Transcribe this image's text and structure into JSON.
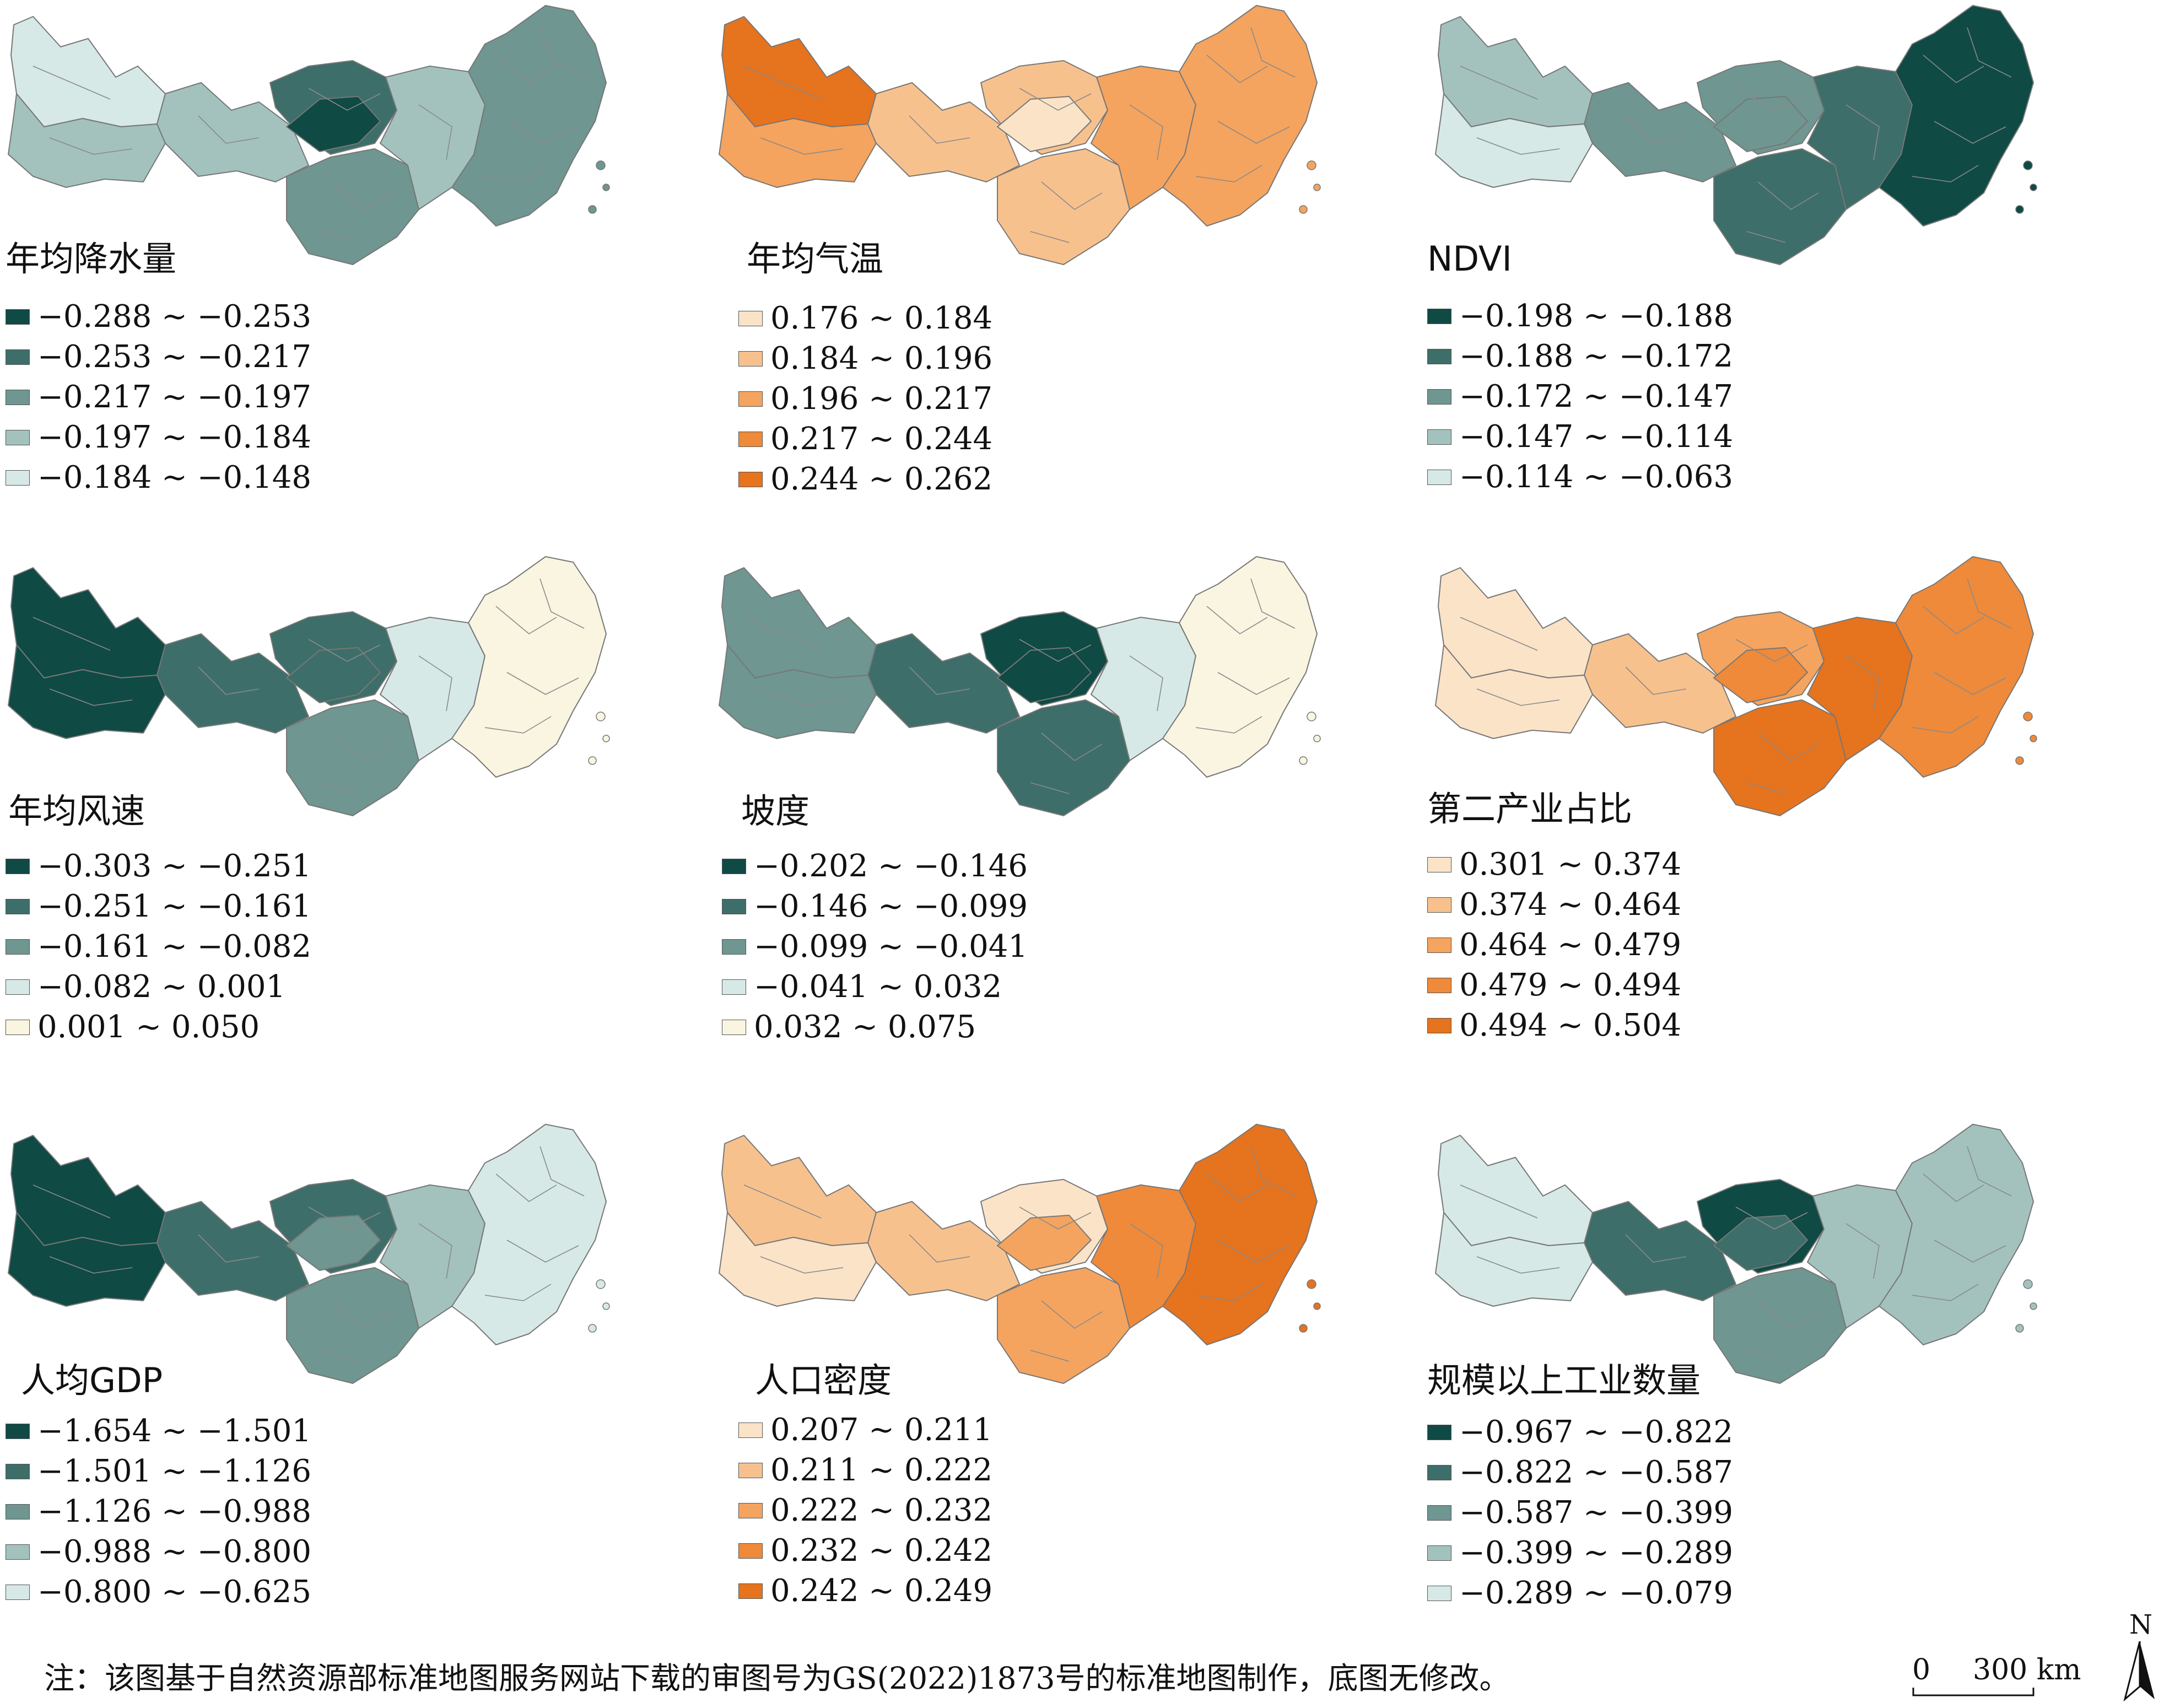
{
  "colors": {
    "teal": [
      "#0f4a44",
      "#3e6e69",
      "#6f9691",
      "#a3c2bd",
      "#d6e9e6"
    ],
    "orange": [
      "#fbe3c8",
      "#f7c18e",
      "#f4a45f",
      "#ee8a3a",
      "#e6731d"
    ],
    "cream": "#f9f5e1",
    "outline": "#777777"
  },
  "panels": [
    {
      "title": "年均降水量",
      "palette": "teal",
      "legend": [
        "−0.288 ~ −0.253",
        "−0.253 ~ −0.217",
        "−0.217 ~ −0.197",
        "−0.197 ~ −0.184",
        "−0.184 ~ −0.148"
      ],
      "legend_colors": [
        "#0f4a44",
        "#3e6e69",
        "#6f9691",
        "#a3c2bd",
        "#d6e9e6"
      ],
      "regions": [
        "#d6e9e6",
        "#a3c2bd",
        "#a3c2bd",
        "#3e6e69",
        "#0f4a44",
        "#6f9691",
        "#a3c2bd",
        "#6f9691"
      ]
    },
    {
      "title": "年均气温",
      "palette": "orange",
      "legend": [
        "0.176 ~ 0.184",
        "0.184 ~ 0.196",
        "0.196 ~ 0.217",
        "0.217 ~ 0.244",
        "0.244 ~ 0.262"
      ],
      "legend_colors": [
        "#fbe3c8",
        "#f7c18e",
        "#f4a45f",
        "#ee8a3a",
        "#e6731d"
      ],
      "regions": [
        "#e6731d",
        "#f4a45f",
        "#f7c18e",
        "#f7c18e",
        "#fbe3c8",
        "#f7c18e",
        "#f4a45f",
        "#f4a45f"
      ]
    },
    {
      "title": "NDVI",
      "palette": "teal",
      "legend": [
        "−0.198 ~ −0.188",
        "−0.188 ~ −0.172",
        "−0.172 ~ −0.147",
        "−0.147 ~ −0.114",
        "−0.114 ~ −0.063"
      ],
      "legend_colors": [
        "#0f4a44",
        "#3e6e69",
        "#6f9691",
        "#a3c2bd",
        "#d6e9e6"
      ],
      "regions": [
        "#a3c2bd",
        "#d6e9e6",
        "#6f9691",
        "#6f9691",
        "#6f9691",
        "#3e6e69",
        "#3e6e69",
        "#0f4a44"
      ]
    },
    {
      "title": "年均风速",
      "palette": "teal",
      "legend": [
        "−0.303 ~ −0.251",
        "−0.251 ~ −0.161",
        "−0.161 ~ −0.082",
        "−0.082 ~ 0.001",
        "0.001 ~ 0.050"
      ],
      "legend_colors": [
        "#0f4a44",
        "#3e6e69",
        "#6f9691",
        "#d6e9e6",
        "#f9f5e1"
      ],
      "regions": [
        "#0f4a44",
        "#0f4a44",
        "#3e6e69",
        "#3e6e69",
        "#3e6e69",
        "#6f9691",
        "#d6e9e6",
        "#f9f5e1"
      ]
    },
    {
      "title": "坡度",
      "palette": "teal",
      "legend": [
        "−0.202 ~ −0.146",
        "−0.146 ~ −0.099",
        "−0.099 ~ −0.041",
        "−0.041 ~ 0.032",
        "0.032 ~ 0.075"
      ],
      "legend_colors": [
        "#0f4a44",
        "#3e6e69",
        "#6f9691",
        "#d6e9e6",
        "#f9f5e1"
      ],
      "regions": [
        "#6f9691",
        "#6f9691",
        "#3e6e69",
        "#0f4a44",
        "#0f4a44",
        "#3e6e69",
        "#d6e9e6",
        "#f9f5e1"
      ]
    },
    {
      "title": "第二产业占比",
      "palette": "orange",
      "legend": [
        "0.301 ~ 0.374",
        "0.374 ~ 0.464",
        "0.464 ~ 0.479",
        "0.479 ~ 0.494",
        "0.494 ~ 0.504"
      ],
      "legend_colors": [
        "#fbe3c8",
        "#f7c18e",
        "#f4a45f",
        "#ee8a3a",
        "#e6731d"
      ],
      "regions": [
        "#fbe3c8",
        "#fbe3c8",
        "#f7c18e",
        "#f4a45f",
        "#ee8a3a",
        "#e6731d",
        "#e6731d",
        "#ee8a3a"
      ]
    },
    {
      "title": "人均GDP",
      "palette": "teal",
      "legend": [
        "−1.654 ~ −1.501",
        "−1.501 ~ −1.126",
        "−1.126 ~ −0.988",
        "−0.988 ~ −0.800",
        "−0.800 ~ −0.625"
      ],
      "legend_colors": [
        "#0f4a44",
        "#3e6e69",
        "#6f9691",
        "#a3c2bd",
        "#d6e9e6"
      ],
      "regions": [
        "#0f4a44",
        "#0f4a44",
        "#3e6e69",
        "#3e6e69",
        "#6f9691",
        "#6f9691",
        "#a3c2bd",
        "#d6e9e6"
      ]
    },
    {
      "title": "人口密度",
      "palette": "orange",
      "legend": [
        "0.207 ~ 0.211",
        "0.211 ~ 0.222",
        "0.222 ~ 0.232",
        "0.232 ~ 0.242",
        "0.242 ~ 0.249"
      ],
      "legend_colors": [
        "#fbe3c8",
        "#f7c18e",
        "#f4a45f",
        "#ee8a3a",
        "#e6731d"
      ],
      "regions": [
        "#f7c18e",
        "#fbe3c8",
        "#f7c18e",
        "#fbe3c8",
        "#f4a45f",
        "#f4a45f",
        "#ee8a3a",
        "#e6731d"
      ]
    },
    {
      "title": "规模以上工业数量",
      "palette": "teal",
      "legend": [
        "−0.967 ~ −0.822",
        "−0.822 ~ −0.587",
        "−0.587 ~ −0.399",
        "−0.399 ~ −0.289",
        "−0.289 ~ −0.079"
      ],
      "legend_colors": [
        "#0f4a44",
        "#3e6e69",
        "#6f9691",
        "#a3c2bd",
        "#d6e9e6"
      ],
      "regions": [
        "#d6e9e6",
        "#d6e9e6",
        "#3e6e69",
        "#0f4a44",
        "#3e6e69",
        "#6f9691",
        "#a3c2bd",
        "#a3c2bd"
      ]
    }
  ],
  "note": "注：该图基于自然资源部标准地图服务网站下载的审图号为GS(2022)1873号的标准地图制作，底图无修改。",
  "scale_bar": {
    "zero": "0",
    "distance": "300 km"
  },
  "north_label": "N"
}
